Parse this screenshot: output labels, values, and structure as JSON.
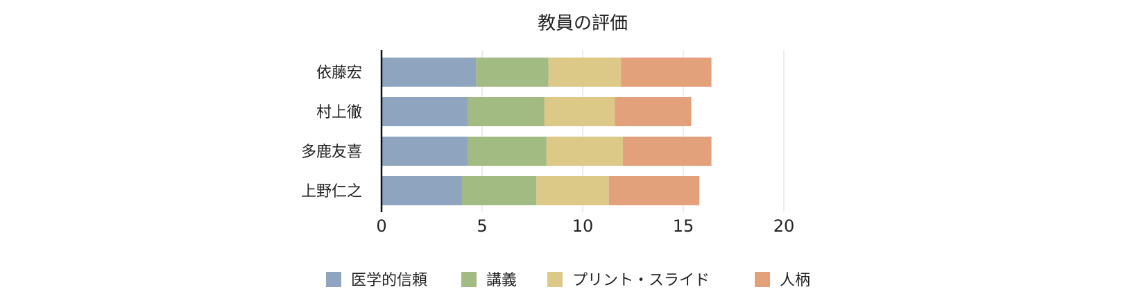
{
  "chart_data": {
    "type": "bar",
    "orientation": "horizontal",
    "stacked": true,
    "title": "教員の評価",
    "categories": [
      "依藤宏",
      "村上徹",
      "多鹿友喜",
      "上野仁之"
    ],
    "series": [
      {
        "name": "医学的信頼",
        "color": "#8fa5bf",
        "values": [
          4.7,
          4.3,
          4.3,
          4.0
        ]
      },
      {
        "name": "講義",
        "color": "#a2bb82",
        "values": [
          3.6,
          3.8,
          3.9,
          3.7
        ]
      },
      {
        "name": "プリント・スライド",
        "color": "#dcc887",
        "values": [
          3.6,
          3.5,
          3.8,
          3.6
        ]
      },
      {
        "name": "人柄",
        "color": "#e2a07b",
        "values": [
          4.5,
          3.8,
          4.4,
          4.5
        ]
      }
    ],
    "xlim": [
      0,
      20
    ],
    "xticks": [
      "0",
      "5",
      "10",
      "15",
      "20"
    ],
    "grid": true,
    "legend_position": "bottom"
  }
}
